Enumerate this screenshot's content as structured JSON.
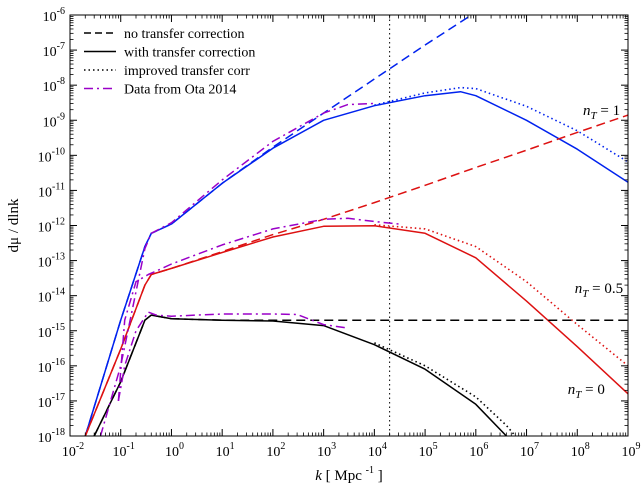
{
  "chart_data": {
    "type": "line",
    "title": "",
    "xlabel": {
      "var": "k",
      "unit": "[ Mpc",
      "exp": "-1",
      "close": "]"
    },
    "ylabel": "dμ / dlnk",
    "xscale": "log",
    "yscale": "log",
    "xlim": [
      0.01,
      1000000000
    ],
    "ylim": [
      1e-18,
      1e-06
    ],
    "x_ticks": [
      {
        "base": "10",
        "exp": "-2",
        "value": 0.01
      },
      {
        "base": "10",
        "exp": "-1",
        "value": 0.1
      },
      {
        "base": "10",
        "exp": "0",
        "value": 1
      },
      {
        "base": "10",
        "exp": "1",
        "value": 10
      },
      {
        "base": "10",
        "exp": "2",
        "value": 100
      },
      {
        "base": "10",
        "exp": "3",
        "value": 1000
      },
      {
        "base": "10",
        "exp": "4",
        "value": 10000
      },
      {
        "base": "10",
        "exp": "5",
        "value": 100000
      },
      {
        "base": "10",
        "exp": "6",
        "value": 1000000
      },
      {
        "base": "10",
        "exp": "7",
        "value": 10000000
      },
      {
        "base": "10",
        "exp": "8",
        "value": 100000000
      },
      {
        "base": "10",
        "exp": "9",
        "value": 1000000000
      }
    ],
    "y_ticks": [
      {
        "base": "10",
        "exp": "-18",
        "value": 1e-18
      },
      {
        "base": "10",
        "exp": "-17",
        "value": 1e-17
      },
      {
        "base": "10",
        "exp": "-16",
        "value": 1e-16
      },
      {
        "base": "10",
        "exp": "-15",
        "value": 1e-15
      },
      {
        "base": "10",
        "exp": "-14",
        "value": 1e-14
      },
      {
        "base": "10",
        "exp": "-13",
        "value": 1e-13
      },
      {
        "base": "10",
        "exp": "-12",
        "value": 1e-12
      },
      {
        "base": "10",
        "exp": "-11",
        "value": 1e-11
      },
      {
        "base": "10",
        "exp": "-10",
        "value": 1e-10
      },
      {
        "base": "10",
        "exp": "-9",
        "value": 1e-09
      },
      {
        "base": "10",
        "exp": "-8",
        "value": 1e-08
      },
      {
        "base": "10",
        "exp": "-7",
        "value": 1e-07
      },
      {
        "base": "10",
        "exp": "-6",
        "value": 1e-06
      }
    ],
    "vertical_line": {
      "x": 20000,
      "style": "dotted",
      "color": "#000000"
    },
    "legend": {
      "position": "top-left",
      "entries": [
        {
          "label": "no transfer correction",
          "style": "dashed",
          "color": "#000000"
        },
        {
          "label": "with transfer correction",
          "style": "solid",
          "color": "#000000"
        },
        {
          "label": "improved transfer corr",
          "style": "dotted",
          "color": "#000000"
        },
        {
          "label": "Data from Ota 2014",
          "style": "dashdot",
          "color": "#9a00c8"
        }
      ]
    },
    "annotations": [
      {
        "var": "n",
        "sub": "T",
        "text": " = 1",
        "x": 700000000,
        "y": 1.4e-09
      },
      {
        "var": "n",
        "sub": "T",
        "text": " = 0.5",
        "x": 800000000,
        "y": 1.2e-14
      },
      {
        "var": "n",
        "sub": "T",
        "text": " = 0",
        "x": 350000000,
        "y": 1.6e-17
      }
    ],
    "series": [
      {
        "group": "nT=1",
        "style": "dashed",
        "color": "#0022ee",
        "x": [
          0.02,
          0.1,
          0.3,
          0.4,
          1,
          10,
          100,
          1000,
          10000,
          100000,
          1000000
        ],
        "y": [
          1e-18,
          2e-15,
          2.5e-13,
          6e-13,
          1.1e-12,
          1.6e-11,
          1.7e-10,
          1.6e-09,
          1.5e-08,
          1.4e-07,
          1.2e-06
        ]
      },
      {
        "group": "nT=1",
        "style": "solid",
        "color": "#0022ee",
        "x": [
          0.02,
          0.1,
          0.3,
          0.4,
          1,
          10,
          100,
          1000,
          10000,
          100000,
          500000,
          1000000,
          10000000,
          100000000,
          1000000000
        ],
        "y": [
          1e-18,
          2e-15,
          2.5e-13,
          6e-13,
          1.1e-12,
          1.6e-11,
          1.6e-10,
          1e-09,
          2.6e-09,
          5e-09,
          6.5e-09,
          5e-09,
          1e-09,
          1.5e-10,
          1.7e-11
        ]
      },
      {
        "group": "nT=1",
        "style": "dotted",
        "color": "#0022ee",
        "x": [
          10000,
          100000,
          500000,
          1000000,
          10000000,
          100000000,
          1000000000
        ],
        "y": [
          2.7e-09,
          6e-09,
          8.5e-09,
          8e-09,
          2.5e-09,
          5e-10,
          6.5e-11
        ]
      },
      {
        "group": "nT=0.5",
        "style": "dashed",
        "color": "#dd1111",
        "x": [
          0.02,
          0.1,
          0.3,
          0.4,
          1,
          10,
          100,
          1000,
          10000,
          100000,
          1000000,
          10000000,
          100000000,
          1000000000
        ],
        "y": [
          1e-18,
          3e-16,
          2e-14,
          4e-14,
          6e-14,
          1.8e-13,
          5.5e-13,
          1.5e-12,
          4.5e-12,
          1.4e-11,
          4.5e-11,
          1.4e-10,
          4.5e-10,
          1.4e-09
        ]
      },
      {
        "group": "nT=0.5",
        "style": "solid",
        "color": "#dd1111",
        "x": [
          0.02,
          0.1,
          0.3,
          0.4,
          1,
          10,
          100,
          1000,
          10000,
          100000,
          1000000,
          10000000,
          100000000,
          1000000000
        ],
        "y": [
          1e-18,
          3e-16,
          2e-14,
          4e-14,
          6e-14,
          1.7e-13,
          4.7e-13,
          9.5e-13,
          9.8e-13,
          6e-13,
          1.2e-13,
          7e-15,
          3.5e-16,
          1.6e-17
        ]
      },
      {
        "group": "nT=0.5",
        "style": "dotted",
        "color": "#dd1111",
        "x": [
          10000,
          100000,
          1000000,
          10000000,
          100000000,
          1000000000
        ],
        "y": [
          1.05e-12,
          8e-13,
          2.5e-13,
          2.5e-14,
          1.5e-15,
          1e-16
        ]
      },
      {
        "group": "nT=0",
        "style": "dashed",
        "color": "#000000",
        "x": [
          0.03,
          0.1,
          0.3,
          0.4,
          1,
          10,
          100,
          1000,
          10000,
          100000,
          1000000,
          10000000,
          100000000,
          1000000000
        ],
        "y": [
          1e-18,
          3.5e-17,
          2e-15,
          2.8e-15,
          2.2e-15,
          2e-15,
          2e-15,
          2e-15,
          2e-15,
          2e-15,
          2e-15,
          2e-15,
          2e-15,
          2e-15
        ]
      },
      {
        "group": "nT=0",
        "style": "solid",
        "color": "#000000",
        "x": [
          0.03,
          0.1,
          0.3,
          0.4,
          1,
          10,
          100,
          1000,
          10000,
          100000,
          1000000,
          4000000
        ],
        "y": [
          1e-18,
          3.5e-17,
          2e-15,
          2.8e-15,
          2.2e-15,
          2e-15,
          1.9e-15,
          1.4e-15,
          4e-16,
          8e-17,
          8e-18,
          1e-18
        ]
      },
      {
        "group": "nT=0",
        "style": "dotted",
        "color": "#000000",
        "x": [
          10000,
          100000,
          1000000,
          4000000,
          6000000
        ],
        "y": [
          4.5e-16,
          1e-16,
          1.3e-17,
          2e-18,
          1e-18
        ]
      },
      {
        "group": "ota",
        "style": "dashdot",
        "color": "#9a00c8",
        "x": [
          0.04,
          0.1,
          0.3,
          0.4,
          1,
          10,
          100,
          1000,
          3000,
          10000
        ],
        "y": [
          1e-18,
          1e-16,
          2.2e-13,
          6e-13,
          1.2e-12,
          2e-11,
          2.5e-10,
          1.6e-09,
          2.8e-09,
          3e-09
        ]
      },
      {
        "group": "ota",
        "style": "dashdot",
        "color": "#9a00c8",
        "x": [
          0.09,
          0.12,
          0.2,
          0.35,
          0.5,
          1,
          10,
          100,
          1000,
          3000,
          10000,
          30000
        ],
        "y": [
          1e-17,
          2e-15,
          2.5e-14,
          4e-14,
          5e-14,
          8e-14,
          2.8e-13,
          8e-13,
          1.5e-12,
          1.6e-12,
          1.3e-12,
          1.1e-12
        ]
      },
      {
        "group": "ota",
        "style": "dashdot",
        "color": "#9a00c8",
        "x": [
          0.09,
          0.12,
          0.2,
          0.35,
          0.5,
          1,
          10,
          100,
          300,
          1000,
          3000
        ],
        "y": [
          1e-17,
          1e-16,
          1e-15,
          3.4e-15,
          2.8e-15,
          2.6e-15,
          3e-15,
          3e-15,
          2.9e-15,
          1.5e-15,
          1.2e-15
        ]
      }
    ]
  }
}
